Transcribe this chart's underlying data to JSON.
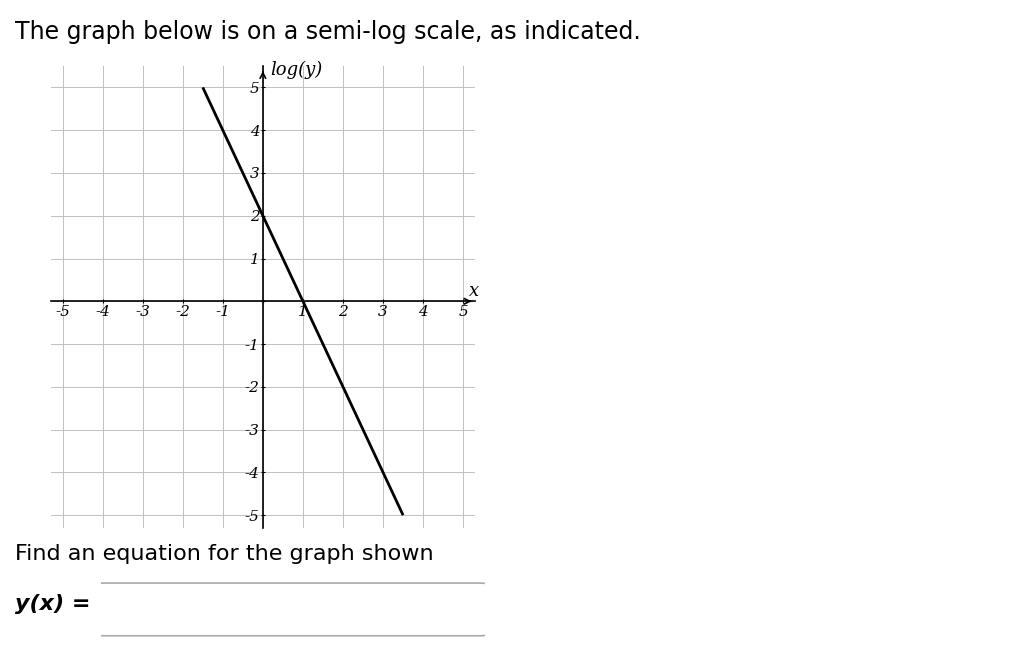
{
  "title": "The graph below is on a semi-log scale, as indicated.",
  "title_fontsize": 17,
  "ylabel": "log(y)",
  "xlabel": "x",
  "axis_label_fontsize": 13,
  "tick_fontsize": 11,
  "xlim": [
    -5.3,
    5.3
  ],
  "ylim": [
    -5.3,
    5.5
  ],
  "line_x": [
    -1.5,
    3.5
  ],
  "line_y": [
    5,
    -5
  ],
  "line_color": "#000000",
  "line_width": 2.0,
  "grid_color": "#c0c0c0",
  "grid_linewidth": 0.7,
  "axis_color": "#000000",
  "background_color": "#ffffff",
  "find_text": "Find an equation for the graph shown",
  "find_fontsize": 16,
  "yx_label": "y(x) =",
  "yx_fontsize": 16
}
